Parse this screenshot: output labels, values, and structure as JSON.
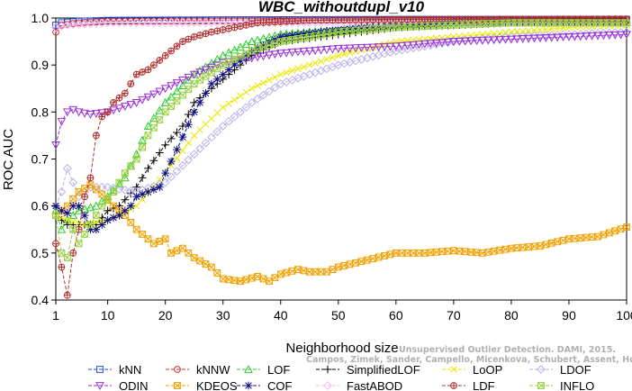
{
  "chart_data": {
    "type": "line",
    "title": "WBC_withoutdupl_v10",
    "xlabel": "Neighborhood size",
    "ylabel": "ROC AUC",
    "xlim": [
      1,
      100
    ],
    "ylim": [
      0.4,
      1.0
    ],
    "xticks": [
      1,
      10,
      20,
      30,
      40,
      50,
      60,
      70,
      80,
      90,
      100
    ],
    "yticks": [
      0.4,
      0.5,
      0.6,
      0.7,
      0.8,
      0.9,
      1.0
    ],
    "ytick_labels": [
      "0.4",
      "0.5",
      "0.6",
      "0.7",
      "0.8",
      "0.9",
      "1.0"
    ],
    "grid": false,
    "legend_position": "bottom",
    "watermark": [
      "Unsupervised Outlier Detection. DAMI, 2015.",
      "Campos, Zimek, Sander, Campello, Micenkova, Schubert, Assent, Houle"
    ],
    "series": [
      {
        "name": "kNN",
        "color": "#1f4fd8",
        "marker": "square",
        "points": [
          [
            1,
            0.985
          ],
          [
            2,
            0.99
          ],
          [
            5,
            0.993
          ],
          [
            10,
            0.995
          ],
          [
            30,
            0.996
          ],
          [
            60,
            0.997
          ],
          [
            100,
            0.997
          ]
        ]
      },
      {
        "name": "kNNW",
        "color": "#d03030",
        "marker": "circle",
        "points": [
          [
            1,
            0.97
          ],
          [
            2,
            0.985
          ],
          [
            5,
            0.99
          ],
          [
            10,
            0.993
          ],
          [
            40,
            0.995
          ],
          [
            100,
            0.996
          ]
        ]
      },
      {
        "name": "LOF",
        "color": "#2ecc2e",
        "marker": "triangle-up",
        "points": [
          [
            1,
            0.59
          ],
          [
            2,
            0.55
          ],
          [
            3,
            0.57
          ],
          [
            5,
            0.59
          ],
          [
            8,
            0.6
          ],
          [
            10,
            0.62
          ],
          [
            13,
            0.66
          ],
          [
            15,
            0.71
          ],
          [
            17,
            0.77
          ],
          [
            20,
            0.82
          ],
          [
            25,
            0.88
          ],
          [
            30,
            0.92
          ],
          [
            35,
            0.95
          ],
          [
            40,
            0.965
          ],
          [
            50,
            0.975
          ],
          [
            60,
            0.985
          ],
          [
            70,
            0.99
          ],
          [
            80,
            0.99
          ],
          [
            90,
            0.99
          ],
          [
            100,
            0.99
          ]
        ]
      },
      {
        "name": "SimplifiedLOF",
        "color": "#000000",
        "marker": "plus",
        "points": [
          [
            1,
            0.6
          ],
          [
            2,
            0.57
          ],
          [
            3,
            0.56
          ],
          [
            5,
            0.56
          ],
          [
            8,
            0.56
          ],
          [
            10,
            0.59
          ],
          [
            12,
            0.6
          ],
          [
            15,
            0.64
          ],
          [
            17,
            0.68
          ],
          [
            20,
            0.73
          ],
          [
            23,
            0.77
          ],
          [
            25,
            0.82
          ],
          [
            30,
            0.87
          ],
          [
            35,
            0.92
          ],
          [
            40,
            0.95
          ],
          [
            50,
            0.965
          ],
          [
            60,
            0.98
          ],
          [
            70,
            0.985
          ],
          [
            80,
            0.99
          ],
          [
            90,
            0.99
          ],
          [
            100,
            0.99
          ]
        ]
      },
      {
        "name": "LoOP",
        "color": "#e8e800",
        "marker": "x",
        "points": [
          [
            1,
            0.58
          ],
          [
            3,
            0.57
          ],
          [
            6,
            0.56
          ],
          [
            10,
            0.57
          ],
          [
            15,
            0.6
          ],
          [
            20,
            0.67
          ],
          [
            25,
            0.75
          ],
          [
            30,
            0.81
          ],
          [
            35,
            0.85
          ],
          [
            40,
            0.88
          ],
          [
            50,
            0.92
          ],
          [
            60,
            0.95
          ],
          [
            70,
            0.96
          ],
          [
            80,
            0.97
          ],
          [
            90,
            0.98
          ],
          [
            100,
            0.985
          ]
        ]
      },
      {
        "name": "LDOF",
        "color": "#b8b0e8",
        "marker": "diamond",
        "points": [
          [
            1,
            0.6
          ],
          [
            2,
            0.63
          ],
          [
            3,
            0.68
          ],
          [
            5,
            0.62
          ],
          [
            7,
            0.64
          ],
          [
            10,
            0.64
          ],
          [
            15,
            0.63
          ],
          [
            20,
            0.65
          ],
          [
            25,
            0.71
          ],
          [
            30,
            0.77
          ],
          [
            35,
            0.82
          ],
          [
            40,
            0.86
          ],
          [
            50,
            0.9
          ],
          [
            60,
            0.93
          ],
          [
            70,
            0.95
          ],
          [
            80,
            0.96
          ],
          [
            90,
            0.965
          ],
          [
            100,
            0.97
          ]
        ]
      },
      {
        "name": "ODIN",
        "color": "#9b30d8",
        "marker": "triangle-down",
        "points": [
          [
            1,
            0.73
          ],
          [
            2,
            0.78
          ],
          [
            3,
            0.8
          ],
          [
            4,
            0.805
          ],
          [
            5,
            0.8
          ],
          [
            7,
            0.795
          ],
          [
            10,
            0.8
          ],
          [
            15,
            0.82
          ],
          [
            20,
            0.85
          ],
          [
            25,
            0.88
          ],
          [
            30,
            0.905
          ],
          [
            40,
            0.925
          ],
          [
            50,
            0.935
          ],
          [
            60,
            0.94
          ],
          [
            70,
            0.95
          ],
          [
            80,
            0.955
          ],
          [
            90,
            0.96
          ],
          [
            100,
            0.965
          ]
        ]
      },
      {
        "name": "KDEOS",
        "color": "#f0a000",
        "marker": "square-x",
        "points": [
          [
            1,
            0.58
          ],
          [
            3,
            0.6
          ],
          [
            5,
            0.63
          ],
          [
            7,
            0.645
          ],
          [
            9,
            0.625
          ],
          [
            11,
            0.6
          ],
          [
            13,
            0.58
          ],
          [
            15,
            0.55
          ],
          [
            17,
            0.53
          ],
          [
            18,
            0.52
          ],
          [
            20,
            0.53
          ],
          [
            21,
            0.5
          ],
          [
            23,
            0.51
          ],
          [
            25,
            0.49
          ],
          [
            28,
            0.47
          ],
          [
            30,
            0.445
          ],
          [
            33,
            0.44
          ],
          [
            36,
            0.45
          ],
          [
            38,
            0.44
          ],
          [
            40,
            0.455
          ],
          [
            43,
            0.465
          ],
          [
            45,
            0.46
          ],
          [
            48,
            0.46
          ],
          [
            50,
            0.47
          ],
          [
            55,
            0.485
          ],
          [
            60,
            0.5
          ],
          [
            65,
            0.5
          ],
          [
            70,
            0.505
          ],
          [
            75,
            0.5
          ],
          [
            80,
            0.51
          ],
          [
            85,
            0.515
          ],
          [
            90,
            0.53
          ],
          [
            95,
            0.535
          ],
          [
            100,
            0.555
          ]
        ]
      },
      {
        "name": "COF",
        "color": "#101080",
        "marker": "star",
        "points": [
          [
            1,
            0.6
          ],
          [
            2,
            0.59
          ],
          [
            3,
            0.585
          ],
          [
            4,
            0.6
          ],
          [
            5,
            0.6
          ],
          [
            6,
            0.58
          ],
          [
            7,
            0.55
          ],
          [
            8,
            0.55
          ],
          [
            10,
            0.57
          ],
          [
            12,
            0.58
          ],
          [
            14,
            0.6
          ],
          [
            15,
            0.62
          ],
          [
            17,
            0.63
          ],
          [
            19,
            0.64
          ],
          [
            20,
            0.67
          ],
          [
            22,
            0.72
          ],
          [
            25,
            0.8
          ],
          [
            28,
            0.86
          ],
          [
            30,
            0.88
          ],
          [
            35,
            0.93
          ],
          [
            40,
            0.96
          ],
          [
            50,
            0.975
          ],
          [
            60,
            0.985
          ],
          [
            70,
            0.99
          ],
          [
            80,
            0.99
          ],
          [
            90,
            0.99
          ],
          [
            100,
            0.99
          ]
        ]
      },
      {
        "name": "FastABOD",
        "color": "#f5b8f0",
        "marker": "diamond",
        "points": [
          [
            1,
            0.98
          ],
          [
            3,
            0.985
          ],
          [
            10,
            0.99
          ],
          [
            30,
            0.99
          ],
          [
            60,
            0.99
          ],
          [
            100,
            0.99
          ]
        ]
      },
      {
        "name": "LDF",
        "color": "#b03030",
        "marker": "circle-plus",
        "points": [
          [
            1,
            0.52
          ],
          [
            2,
            0.47
          ],
          [
            3,
            0.41
          ],
          [
            4,
            0.5
          ],
          [
            5,
            0.55
          ],
          [
            6,
            0.62
          ],
          [
            7,
            0.66
          ],
          [
            8,
            0.75
          ],
          [
            9,
            0.79
          ],
          [
            10,
            0.8
          ],
          [
            11,
            0.82
          ],
          [
            13,
            0.84
          ],
          [
            15,
            0.88
          ],
          [
            17,
            0.89
          ],
          [
            19,
            0.91
          ],
          [
            21,
            0.93
          ],
          [
            23,
            0.95
          ],
          [
            25,
            0.96
          ],
          [
            28,
            0.97
          ],
          [
            32,
            0.98
          ],
          [
            36,
            0.99
          ],
          [
            45,
            0.995
          ],
          [
            60,
            0.997
          ],
          [
            100,
            0.998
          ]
        ]
      },
      {
        "name": "INFLO",
        "color": "#98d040",
        "marker": "square-x",
        "points": [
          [
            1,
            0.58
          ],
          [
            2,
            0.5
          ],
          [
            3,
            0.49
          ],
          [
            4,
            0.55
          ],
          [
            5,
            0.52
          ],
          [
            7,
            0.56
          ],
          [
            9,
            0.6
          ],
          [
            11,
            0.63
          ],
          [
            13,
            0.67
          ],
          [
            15,
            0.7
          ],
          [
            17,
            0.75
          ],
          [
            20,
            0.8
          ],
          [
            25,
            0.86
          ],
          [
            30,
            0.9
          ],
          [
            35,
            0.93
          ],
          [
            40,
            0.95
          ],
          [
            50,
            0.97
          ],
          [
            60,
            0.98
          ],
          [
            70,
            0.985
          ],
          [
            80,
            0.99
          ],
          [
            100,
            0.99
          ]
        ]
      }
    ]
  }
}
